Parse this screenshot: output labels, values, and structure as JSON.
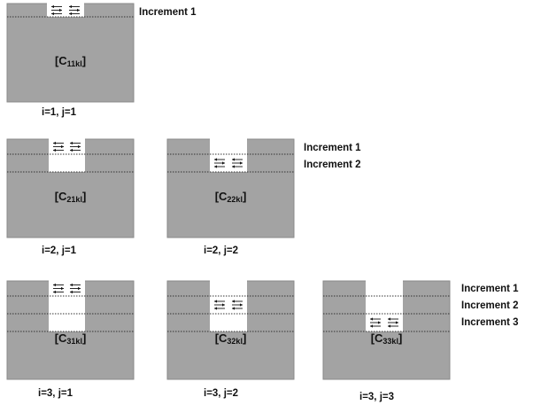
{
  "blocks": [
    {
      "id": "c11",
      "tensor": "C",
      "sub": "11kl",
      "i": 1,
      "j": 1,
      "caption": "i=1,  j=1"
    },
    {
      "id": "c21",
      "tensor": "C",
      "sub": "21kl",
      "i": 2,
      "j": 1,
      "caption": "i=2,  j=1"
    },
    {
      "id": "c22",
      "tensor": "C",
      "sub": "22kl",
      "i": 2,
      "j": 2,
      "caption": "i=2,  j=2"
    },
    {
      "id": "c31",
      "tensor": "C",
      "sub": "31kl",
      "i": 3,
      "j": 1,
      "caption": "i=3,  j=1"
    },
    {
      "id": "c32",
      "tensor": "C",
      "sub": "32kl",
      "i": 3,
      "j": 2,
      "caption": "i=3,  j=2"
    },
    {
      "id": "c33",
      "tensor": "C",
      "sub": "33kl",
      "i": 3,
      "j": 3,
      "caption": "i=3,  j=3"
    }
  ],
  "increment_labels": {
    "row1": [
      "Increment 1"
    ],
    "row2": [
      "Increment 1",
      "Increment 2"
    ],
    "row3": [
      "Increment 1",
      "Increment 2",
      "Increment 3"
    ]
  },
  "colors": {
    "block_fill": "#a3a3a3",
    "block_stroke": "#8a8a8a",
    "excavation_fill": "#ffffff",
    "dotted_line": "#333333",
    "arrow": "#111111"
  }
}
